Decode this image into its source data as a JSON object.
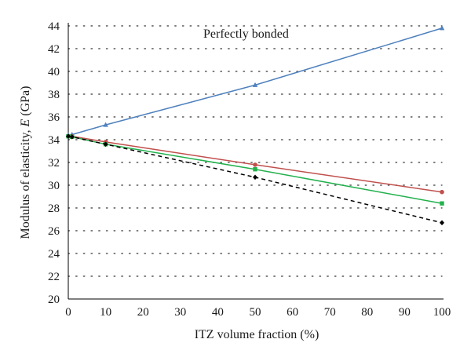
{
  "chart_data": {
    "type": "line",
    "annotation": "Perfectly bonded",
    "xlabel": "ITZ volume fraction (%)",
    "ylabel_prefix": "Modulus of elasticity, ",
    "ylabel_symbol": "E",
    "ylabel_suffix": " (GPa)",
    "xlim": [
      0,
      100
    ],
    "ylim": [
      20,
      44
    ],
    "xticks": [
      0,
      10,
      20,
      30,
      40,
      50,
      60,
      70,
      80,
      90,
      100
    ],
    "yticks": [
      20,
      22,
      24,
      26,
      28,
      30,
      32,
      34,
      36,
      38,
      40,
      42,
      44
    ],
    "grid": "horizontal dotted",
    "series": [
      {
        "color": "#4f81bd",
        "marker": "triangle",
        "dash": "none",
        "x": [
          0,
          1,
          10,
          50,
          100
        ],
        "y": [
          34.4,
          34.45,
          35.3,
          38.8,
          43.8
        ]
      },
      {
        "color": "#c0504d",
        "marker": "circle",
        "dash": "none",
        "x": [
          0,
          1,
          10,
          50,
          100
        ],
        "y": [
          34.3,
          34.3,
          33.8,
          31.8,
          29.4
        ]
      },
      {
        "color": "#22b14c",
        "marker": "square",
        "dash": "none",
        "x": [
          0,
          1,
          10,
          50,
          100
        ],
        "y": [
          34.3,
          34.25,
          33.6,
          31.4,
          28.4
        ]
      },
      {
        "color": "#000000",
        "marker": "diamond",
        "dash": "dashed",
        "x": [
          0,
          1,
          10,
          50,
          100
        ],
        "y": [
          34.3,
          34.25,
          33.6,
          30.7,
          26.7
        ]
      }
    ]
  }
}
